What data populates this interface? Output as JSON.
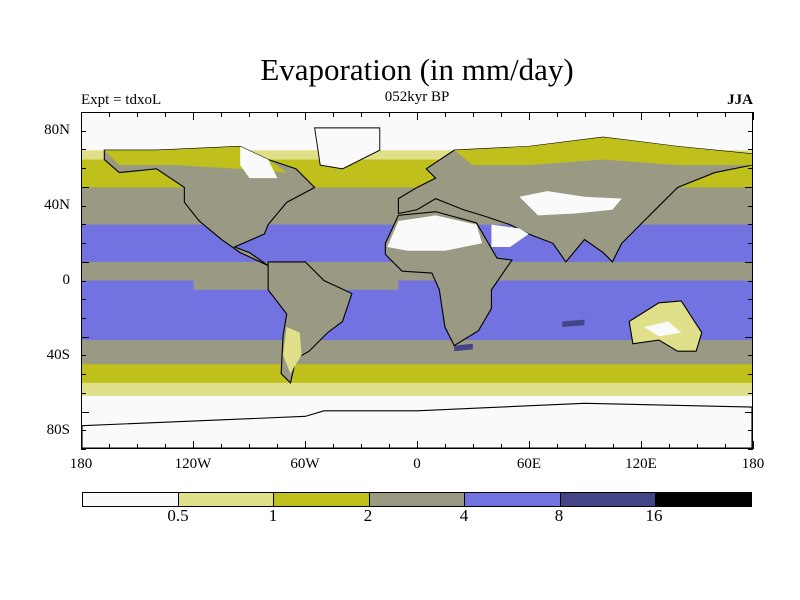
{
  "title": "Evaporation (in mm/day)",
  "left_subtitle": "Expt = tdxoL",
  "center_subtitle": "052kyr BP",
  "right_subtitle": "JJA",
  "lat_labels": [
    "80N",
    "40N",
    "0",
    "40S",
    "80S"
  ],
  "lon_labels": [
    "180",
    "120W",
    "60W",
    "0",
    "60E",
    "120E",
    "180"
  ],
  "colorbar": {
    "colors": [
      "#fafafa",
      "#e0e08a",
      "#c0c01c",
      "#9a9a84",
      "#7272e0",
      "#444488",
      "#000000"
    ],
    "labels": [
      "0.5",
      "1",
      "2",
      "4",
      "8",
      "16"
    ]
  }
}
